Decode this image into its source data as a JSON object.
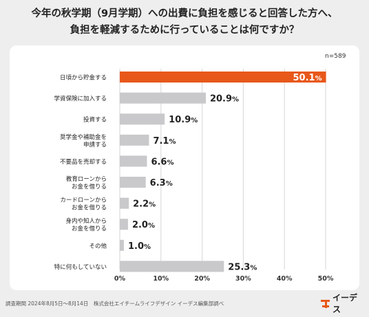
{
  "title_line1": "今年の秋学期（9月学期）への出費に負担を感じると回答した方へ、",
  "title_line2": "負担を軽減するために行っていることは何ですか？",
  "sample": "n=589",
  "footer": "調査期間 2024年8月5日〜8月14日　株式会社エイチームライフデザイン イーデス編集部調べ",
  "logo_text": "イーデス",
  "colors": {
    "highlight": "#e8581a",
    "bar": "#c9c9cc",
    "background": "#eeeeee",
    "brand": "#e8581a"
  },
  "chart_data": {
    "type": "bar",
    "orientation": "horizontal",
    "categories": [
      [
        "日頃から貯金する"
      ],
      [
        "学資保険に加入する"
      ],
      [
        "投資する"
      ],
      [
        "奨学金や補助金を",
        "申請する"
      ],
      [
        "不要品を売却する"
      ],
      [
        "教育ローンから",
        "お金を借りる"
      ],
      [
        "カードローンから",
        "お金を借りる"
      ],
      [
        "身内や知人から",
        "お金を借りる"
      ],
      [
        "その他"
      ],
      [
        "特に何もしていない"
      ]
    ],
    "values": [
      50.1,
      20.9,
      10.9,
      7.1,
      6.6,
      6.3,
      2.2,
      2.0,
      1.0,
      25.3
    ],
    "unit": "%",
    "highlight_index": 0,
    "xlim": [
      0,
      50
    ],
    "xticks": [
      "0%",
      "10%",
      "20%",
      "30%",
      "40%",
      "50%"
    ],
    "grid": true
  }
}
